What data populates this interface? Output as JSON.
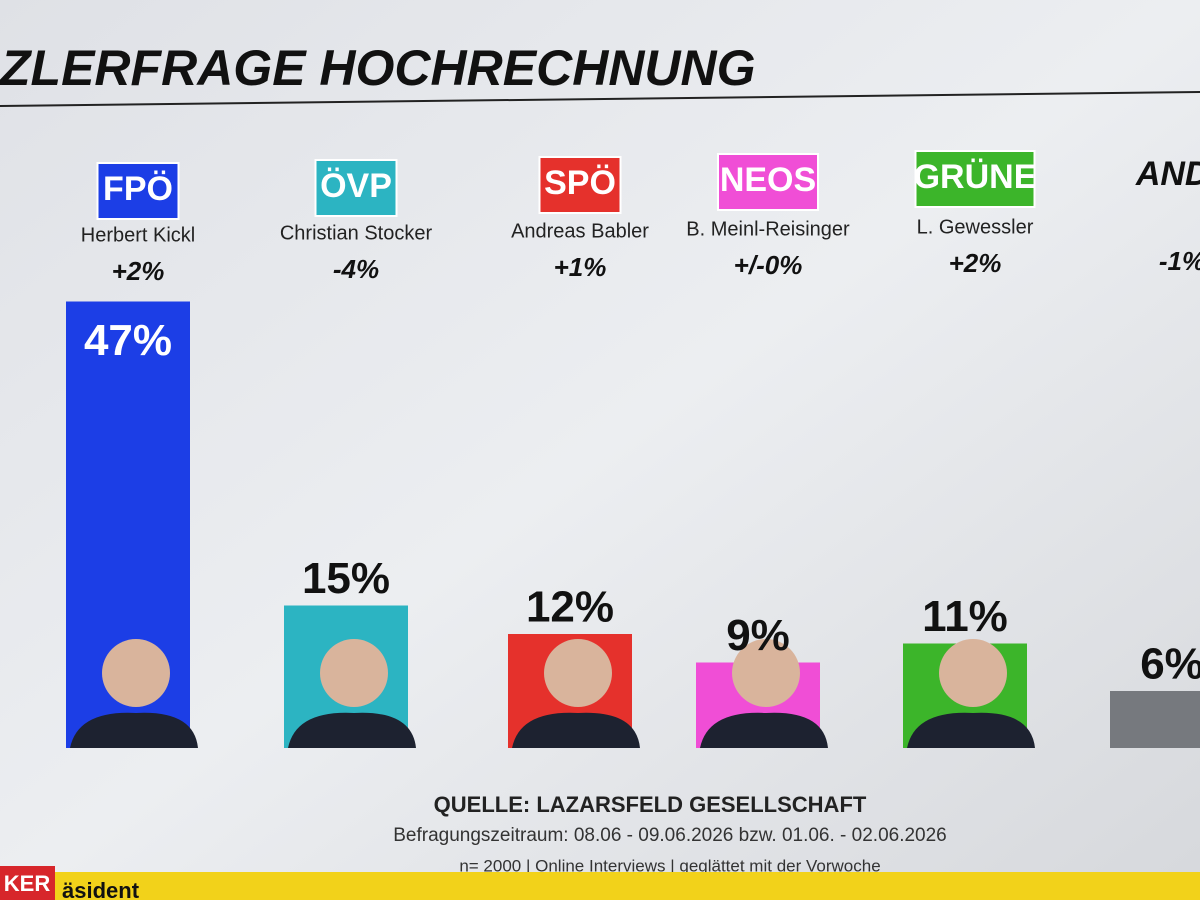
{
  "chart_data": {
    "type": "bar",
    "title": "ZLERFRAGE HOCHRECHNUNG",
    "categories": [
      "FPÖ",
      "ÖVP",
      "SPÖ",
      "NEOS",
      "GRÜNE",
      "ANDE"
    ],
    "candidates": [
      "Herbert Kickl",
      "Christian Stocker",
      "Andreas Babler",
      "B. Meinl-Reisinger",
      "L. Gewessler",
      null
    ],
    "changes": [
      "+2%",
      "-4%",
      "+1%",
      "+/-0%",
      "+2%",
      "-1%"
    ],
    "values": [
      47,
      15,
      12,
      9,
      11,
      6
    ],
    "value_labels": [
      "47%",
      "15%",
      "12%",
      "9%",
      "11%",
      "6%"
    ],
    "colors": [
      "#1c3ee6",
      "#2cb4c2",
      "#e5312c",
      "#f04ed6",
      "#3cb52a",
      "#76797e"
    ],
    "source": "QUELLE: LAZARSFELD GESELLSCHAFT",
    "period": "Befragungszeitraum: 08.06 - 09.06.2026 bzw. 01.06. - 02.06.2026",
    "note": "n= 2000 | Online Interviews | geglättet mit der Vorwoche",
    "ticker_tag": "KER",
    "ticker_text": "äsident"
  }
}
